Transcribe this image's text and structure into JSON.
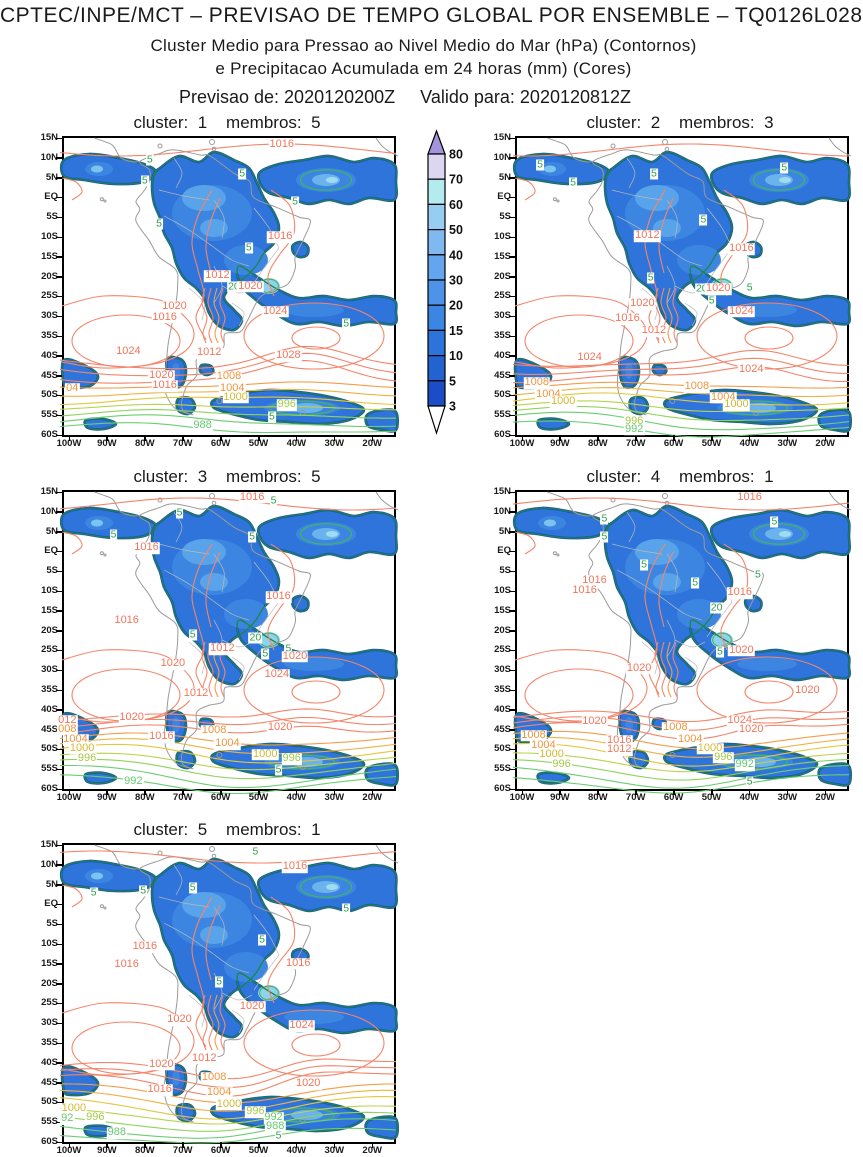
{
  "header": {
    "title": "CPTEC/INPE/MCT – PREVISAO DE TEMPO GLOBAL POR ENSEMBLE – TQ0126L028",
    "subtitle1": "Cluster Medio para Pressao ao Nivel Medio do Mar (hPa) (Contornos)",
    "subtitle2": "e Precipitacao Acumulada em 24 horas (mm) (Cores)",
    "init_label": "Previsao de:",
    "init_value": "2020120200Z",
    "valid_label": "Valido para:",
    "valid_value": "2020120812Z"
  },
  "chart_data": {
    "type": "contour-map-ensemble",
    "model": "TQ0126L028",
    "init_time": "2020120200Z",
    "valid_time": "2020120812Z",
    "fields": {
      "contours": "Pressao ao Nivel Medio do Mar (hPa)",
      "shading": "Precipitacao Acumulada em 24 horas (mm)"
    },
    "pressure_contours_hPa": {
      "interval": 4,
      "labeled_levels": [
        988,
        992,
        996,
        1000,
        1004,
        1008,
        1012,
        1016,
        1020,
        1024,
        1028
      ]
    },
    "precip_shading_levels_mm": [
      3,
      5,
      10,
      15,
      20,
      30,
      40,
      50,
      60,
      70,
      80
    ],
    "axes": {
      "lat_ticks": [
        "15N",
        "10N",
        "5N",
        "EQ",
        "5S",
        "10S",
        "15S",
        "20S",
        "25S",
        "30S",
        "35S",
        "40S",
        "45S",
        "50S",
        "55S",
        "60S"
      ],
      "lon_ticks": [
        "100W",
        "90W",
        "80W",
        "70W",
        "60W",
        "50W",
        "40W",
        "30W",
        "20W"
      ],
      "lat_range": [
        "15N",
        "60S"
      ],
      "lon_range": [
        "100W",
        "13W"
      ]
    },
    "colorbar": {
      "levels_top_to_bottom": [
        "80",
        "70",
        "60",
        "50",
        "40",
        "30",
        "20",
        "15",
        "10",
        "5",
        "3"
      ],
      "cell_colors_top_to_bottom": [
        "#dcd6f0",
        "#b4ebee",
        "#96cdf0",
        "#7fb9f0",
        "#63a5ee",
        "#4c93e9",
        "#3b85e3",
        "#2d74da",
        "#2363d0",
        "#1c4dc6"
      ],
      "arrow_top_color": "#a494dc",
      "arrow_bottom_color": "#ffffff"
    },
    "panels": [
      {
        "cluster": 1,
        "membros": 5,
        "variant": 0,
        "title": "cluster:  1    membros:  5",
        "labels": [
          [
            "1016",
            66,
            2.5,
            "r"
          ],
          [
            "5",
            26,
            7.5,
            "g"
          ],
          [
            "5",
            24.5,
            14.5,
            "g"
          ],
          [
            "5",
            54,
            12,
            "g"
          ],
          [
            "5",
            70,
            21.5,
            "g"
          ],
          [
            "5",
            28.8,
            29,
            "g"
          ],
          [
            "1016",
            65.5,
            33.5,
            "r"
          ],
          [
            "5",
            56,
            37,
            "g"
          ],
          [
            "1012",
            46.5,
            46.5,
            "r"
          ],
          [
            "20",
            51.5,
            50,
            "g"
          ],
          [
            "1020",
            56.5,
            50,
            "r"
          ],
          [
            "1020",
            33.5,
            57,
            "r"
          ],
          [
            "1016",
            30.5,
            60.5,
            "r"
          ],
          [
            "1024",
            64,
            58.5,
            "r"
          ],
          [
            "1024",
            19.5,
            72,
            "r"
          ],
          [
            "1012",
            44,
            72.5,
            "r"
          ],
          [
            "1028",
            68,
            73.5,
            "r"
          ],
          [
            "1020",
            29.5,
            80,
            "r"
          ],
          [
            "1016",
            30.5,
            83.5,
            "r"
          ],
          [
            "1008",
            50,
            80.5,
            "o"
          ],
          [
            "1004",
            51,
            84.5,
            "o"
          ],
          [
            "1000",
            52,
            87.5,
            "y"
          ],
          [
            "04",
            2.5,
            84.5,
            "o"
          ],
          [
            "996",
            67.5,
            90,
            "yg"
          ],
          [
            "5",
            85.5,
            62.5,
            "g"
          ],
          [
            "5",
            63,
            94,
            "g"
          ],
          [
            "988",
            42,
            97,
            "gy"
          ]
        ]
      },
      {
        "cluster": 2,
        "membros": 3,
        "variant": 1,
        "title": "cluster:  2    membros:  3",
        "labels": [
          [
            "5",
            7,
            9,
            "g"
          ],
          [
            "5",
            17,
            15,
            "g"
          ],
          [
            "5",
            41.5,
            12,
            "g"
          ],
          [
            "5",
            81,
            10,
            "g"
          ],
          [
            "5",
            56.5,
            27.5,
            "g"
          ],
          [
            "1012",
            39.5,
            33,
            "r"
          ],
          [
            "1016",
            68,
            37.5,
            "r"
          ],
          [
            "5",
            40.5,
            47,
            "g"
          ],
          [
            "20",
            56,
            51,
            "g"
          ],
          [
            "1020",
            61,
            51,
            "r"
          ],
          [
            "5",
            70.5,
            50.5,
            "g"
          ],
          [
            "5",
            59,
            55,
            "g"
          ],
          [
            "1020",
            38,
            56,
            "r"
          ],
          [
            "1016",
            33.5,
            61,
            "r"
          ],
          [
            "1024",
            68,
            58.5,
            "r"
          ],
          [
            "1012",
            41.5,
            65,
            "r"
          ],
          [
            "1024",
            22,
            74,
            "r"
          ],
          [
            "1024",
            71,
            78,
            "r"
          ],
          [
            "1008",
            6,
            82.5,
            "o"
          ],
          [
            "1004",
            9.5,
            86.5,
            "o"
          ],
          [
            "1000",
            14,
            89,
            "y"
          ],
          [
            "1008",
            54.5,
            84,
            "o"
          ],
          [
            "1004",
            62.5,
            87.5,
            "o"
          ],
          [
            "1000",
            66.5,
            90,
            "y"
          ],
          [
            "996",
            35.5,
            95.5,
            "yg"
          ],
          [
            "992",
            35.5,
            98.3,
            "gy"
          ]
        ]
      },
      {
        "cluster": 3,
        "membros": 5,
        "variant": 2,
        "title": "cluster:  3    membros:  5",
        "labels": [
          [
            "1016",
            57,
            2,
            "r"
          ],
          [
            "5",
            63.5,
            3,
            "g"
          ],
          [
            "5",
            35,
            7,
            "g"
          ],
          [
            "5",
            15,
            14.5,
            "g"
          ],
          [
            "5",
            57,
            15,
            "g"
          ],
          [
            "1016",
            25,
            19,
            "r"
          ],
          [
            "1016",
            65,
            35.5,
            "r"
          ],
          [
            "1016",
            19,
            43.5,
            "r"
          ],
          [
            "5",
            39,
            48,
            "g"
          ],
          [
            "20",
            58,
            49,
            "g"
          ],
          [
            "1012",
            48,
            53,
            "r"
          ],
          [
            "5",
            61,
            54.5,
            "g"
          ],
          [
            "5",
            68,
            53,
            "g"
          ],
          [
            "1020",
            70,
            55.5,
            "r"
          ],
          [
            "1020",
            33,
            58,
            "r"
          ],
          [
            "1024",
            64.5,
            61.5,
            "r"
          ],
          [
            "1012",
            40,
            68,
            "r"
          ],
          [
            "1020",
            20.5,
            76,
            "r"
          ],
          [
            "1020",
            65.5,
            79.5,
            "r"
          ],
          [
            "012",
            1,
            77,
            "r"
          ],
          [
            "008",
            1,
            80,
            "o"
          ],
          [
            "1004",
            3.5,
            83.5,
            "o"
          ],
          [
            "1000",
            5.5,
            86.5,
            "y"
          ],
          [
            "996",
            7,
            90,
            "yg"
          ],
          [
            "1016",
            29.5,
            82.5,
            "r"
          ],
          [
            "1008",
            45.5,
            80.5,
            "o"
          ],
          [
            "1004",
            49.5,
            85,
            "o"
          ],
          [
            "1000",
            61,
            88.5,
            "y"
          ],
          [
            "996",
            69,
            90,
            "yg"
          ],
          [
            "992",
            21,
            97.5,
            "gy"
          ],
          [
            "5",
            65,
            93.5,
            "g"
          ]
        ]
      },
      {
        "cluster": 4,
        "membros": 1,
        "variant": 3,
        "title": "cluster:  4    membros:  1",
        "labels": [
          [
            "1016",
            70.5,
            2,
            "r"
          ],
          [
            "5",
            26.5,
            9,
            "g"
          ],
          [
            "5",
            78,
            10,
            "g"
          ],
          [
            "5",
            26.5,
            15,
            "g"
          ],
          [
            "5",
            38.5,
            24.5,
            "g"
          ],
          [
            "1016",
            23.5,
            30,
            "r"
          ],
          [
            "1016",
            20.5,
            33.5,
            "r"
          ],
          [
            "5",
            54,
            30.5,
            "g"
          ],
          [
            "5",
            73,
            28,
            "g"
          ],
          [
            "1016",
            67.5,
            34,
            "r"
          ],
          [
            "20",
            60.5,
            39,
            "g"
          ],
          [
            "5",
            61.5,
            54,
            "g"
          ],
          [
            "1020",
            68,
            53.5,
            "r"
          ],
          [
            "1020",
            37,
            59.5,
            "r"
          ],
          [
            "1020",
            88,
            67,
            "r"
          ],
          [
            "1020",
            23.5,
            77.5,
            "r"
          ],
          [
            "1024",
            67.5,
            77,
            "r"
          ],
          [
            "1020",
            71,
            80,
            "r"
          ],
          [
            "1008",
            48,
            79.5,
            "o"
          ],
          [
            "1008",
            5,
            82,
            "o"
          ],
          [
            "1004",
            8,
            85.5,
            "o"
          ],
          [
            "1000",
            10.5,
            88.5,
            "y"
          ],
          [
            "996",
            13.5,
            92,
            "yg"
          ],
          [
            "1016",
            31,
            84,
            "r"
          ],
          [
            "1012",
            31,
            87,
            "r"
          ],
          [
            "1004",
            52.5,
            83.5,
            "o"
          ],
          [
            "1000",
            58.5,
            86.5,
            "y"
          ],
          [
            "996",
            62.5,
            89.5,
            "yg"
          ],
          [
            "992",
            69,
            92,
            "gy"
          ],
          [
            "5",
            70.5,
            97.5,
            "g"
          ]
        ]
      },
      {
        "cluster": 5,
        "membros": 1,
        "variant": 4,
        "title": "cluster:  5    membros:  1",
        "labels": [
          [
            "5",
            58,
            2.5,
            "g"
          ],
          [
            "1016",
            70,
            7.5,
            "r"
          ],
          [
            "5",
            9,
            16,
            "g"
          ],
          [
            "5",
            24,
            15.5,
            "g"
          ],
          [
            "5",
            39,
            14.5,
            "g"
          ],
          [
            "5",
            85.5,
            21.5,
            "g"
          ],
          [
            "5",
            60,
            32,
            "g"
          ],
          [
            "1016",
            24.5,
            34.5,
            "r"
          ],
          [
            "1016",
            19,
            40.5,
            "r"
          ],
          [
            "1016",
            71,
            40,
            "r"
          ],
          [
            "5",
            47,
            46,
            "g"
          ],
          [
            "1020",
            57,
            54.5,
            "r"
          ],
          [
            "1020",
            35,
            59,
            "r"
          ],
          [
            "1024",
            72,
            61,
            "r"
          ],
          [
            "1012",
            42.5,
            72,
            "r"
          ],
          [
            "1020",
            29.5,
            74,
            "r"
          ],
          [
            "1008",
            45.5,
            78.5,
            "o"
          ],
          [
            "1020",
            74,
            80.5,
            "r"
          ],
          [
            "1016",
            29,
            82.5,
            "r"
          ],
          [
            "1004",
            47,
            83.5,
            "o"
          ],
          [
            "1000",
            50,
            87.5,
            "y"
          ],
          [
            "1000",
            3,
            89,
            "y"
          ],
          [
            "996",
            9.5,
            92,
            "yg"
          ],
          [
            "92",
            1,
            92.3,
            "gy"
          ],
          [
            "996",
            58,
            90,
            "yg"
          ],
          [
            "992",
            63.5,
            92,
            "gy"
          ],
          [
            "988",
            64,
            95,
            "gy"
          ],
          [
            "988",
            16,
            97,
            "gy"
          ],
          [
            "5",
            65,
            98,
            "g"
          ]
        ]
      }
    ]
  }
}
